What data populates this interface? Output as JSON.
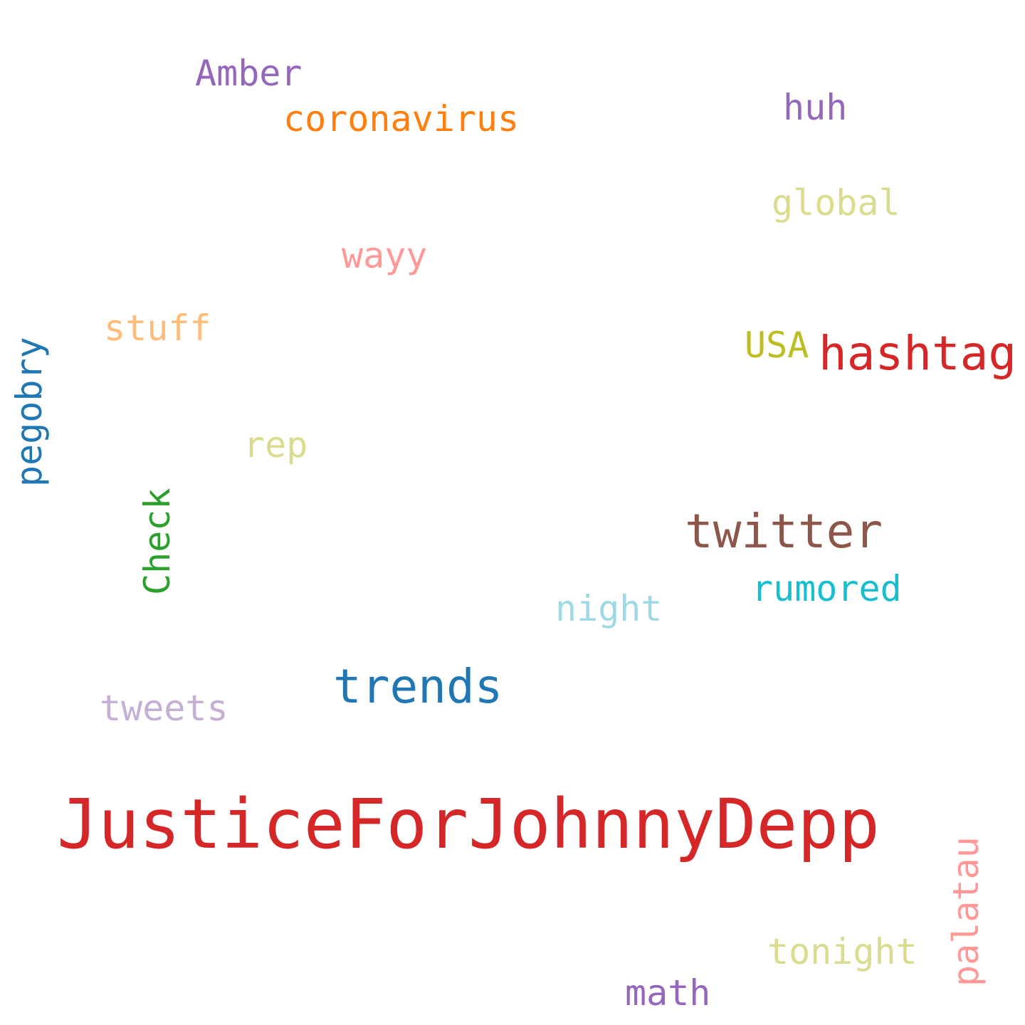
{
  "words": [
    {
      "key": "justice",
      "text": "JusticeForJohnnyDepp",
      "color": "#d62728"
    },
    {
      "key": "trends",
      "text": "trends",
      "color": "#1f77b4"
    },
    {
      "key": "twitter",
      "text": "twitter",
      "color": "#8c564b"
    },
    {
      "key": "hashtag",
      "text": "hashtag",
      "color": "#d62728"
    },
    {
      "key": "coronavirus",
      "text": "coronavirus",
      "color": "#ff7f0e"
    },
    {
      "key": "amber",
      "text": "Amber",
      "color": "#9467bd"
    },
    {
      "key": "huh",
      "text": "huh",
      "color": "#9467bd"
    },
    {
      "key": "global",
      "text": "global",
      "color": "#dbdb8d"
    },
    {
      "key": "wayy",
      "text": "wayy",
      "color": "#ff9896"
    },
    {
      "key": "stuff",
      "text": "stuff",
      "color": "#ffbb78"
    },
    {
      "key": "usa",
      "text": "USA",
      "color": "#bcbd22"
    },
    {
      "key": "pegobry",
      "text": "pegobry",
      "color": "#1f77b4"
    },
    {
      "key": "rep",
      "text": "rep",
      "color": "#dbdb8d"
    },
    {
      "key": "check",
      "text": "Check",
      "color": "#2ca02c"
    },
    {
      "key": "rumored",
      "text": "rumored",
      "color": "#17becf"
    },
    {
      "key": "night",
      "text": "night",
      "color": "#9edae5"
    },
    {
      "key": "tweets",
      "text": "tweets",
      "color": "#c5b0d5"
    },
    {
      "key": "palatau",
      "text": "palatau",
      "color": "#ff9896"
    },
    {
      "key": "tonight",
      "text": "tonight",
      "color": "#dbdb8d"
    },
    {
      "key": "math",
      "text": "math",
      "color": "#9467bd"
    }
  ]
}
